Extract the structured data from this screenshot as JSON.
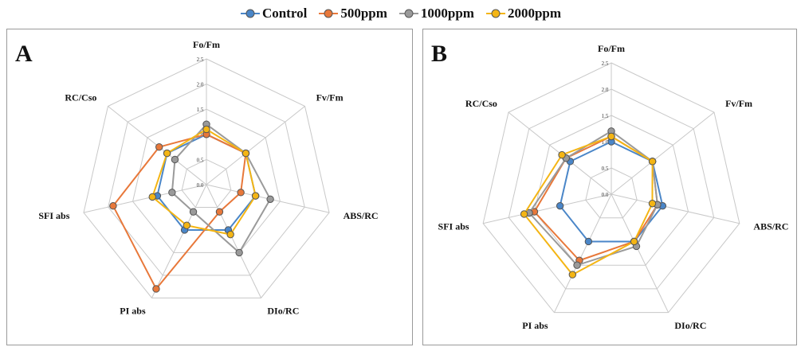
{
  "legend": [
    {
      "name": "Control",
      "color": "#4a86c8"
    },
    {
      "name": "500ppm",
      "color": "#e8783a"
    },
    {
      "name": "1000ppm",
      "color": "#9a9a9a"
    },
    {
      "name": "2000ppm",
      "color": "#f4b514"
    }
  ],
  "chart_data": [
    {
      "type": "radar",
      "panel": "A",
      "axes": [
        "Fo/Fm",
        "Fv/Fm",
        "ABS/RC",
        "DIo/RC",
        "PI abs",
        "SFI abs",
        "RC/Cso"
      ],
      "ticks": [
        "0.0",
        "0.5",
        "1.0",
        "1.5",
        "2.0",
        "2.5"
      ],
      "rmax": 2.5,
      "series": [
        {
          "name": "Control",
          "color": "#4a86c8",
          "values": [
            1.0,
            1.0,
            1.0,
            1.0,
            1.0,
            1.0,
            1.0
          ]
        },
        {
          "name": "500ppm",
          "color": "#e8783a",
          "values": [
            1.0,
            1.0,
            0.7,
            0.6,
            2.3,
            1.9,
            1.2
          ]
        },
        {
          "name": "1000ppm",
          "color": "#9a9a9a",
          "values": [
            1.2,
            1.0,
            1.3,
            1.5,
            0.6,
            0.7,
            0.8
          ]
        },
        {
          "name": "2000ppm",
          "color": "#f4b514",
          "values": [
            1.1,
            1.0,
            1.0,
            1.1,
            0.9,
            1.1,
            1.0
          ]
        }
      ]
    },
    {
      "type": "radar",
      "panel": "B",
      "axes": [
        "Fo/Fm",
        "Fv/Fm",
        "ABS/RC",
        "DIo/RC",
        "PI abs",
        "SFI abs",
        "RC/Cso"
      ],
      "ticks": [
        "0.0",
        "0.5",
        "1.0",
        "1.5",
        "2.0",
        "2.5"
      ],
      "rmax": 2.5,
      "series": [
        {
          "name": "Control",
          "color": "#4a86c8",
          "values": [
            1.0,
            1.0,
            1.0,
            1.0,
            1.0,
            1.0,
            1.0
          ]
        },
        {
          "name": "500ppm",
          "color": "#e8783a",
          "values": [
            1.1,
            1.0,
            0.9,
            1.0,
            1.4,
            1.5,
            1.1
          ]
        },
        {
          "name": "1000ppm",
          "color": "#9a9a9a",
          "values": [
            1.2,
            1.0,
            0.9,
            1.1,
            1.5,
            1.6,
            1.1
          ]
        },
        {
          "name": "2000ppm",
          "color": "#f4b514",
          "values": [
            1.1,
            1.0,
            0.8,
            1.0,
            1.7,
            1.7,
            1.2
          ]
        }
      ]
    }
  ]
}
